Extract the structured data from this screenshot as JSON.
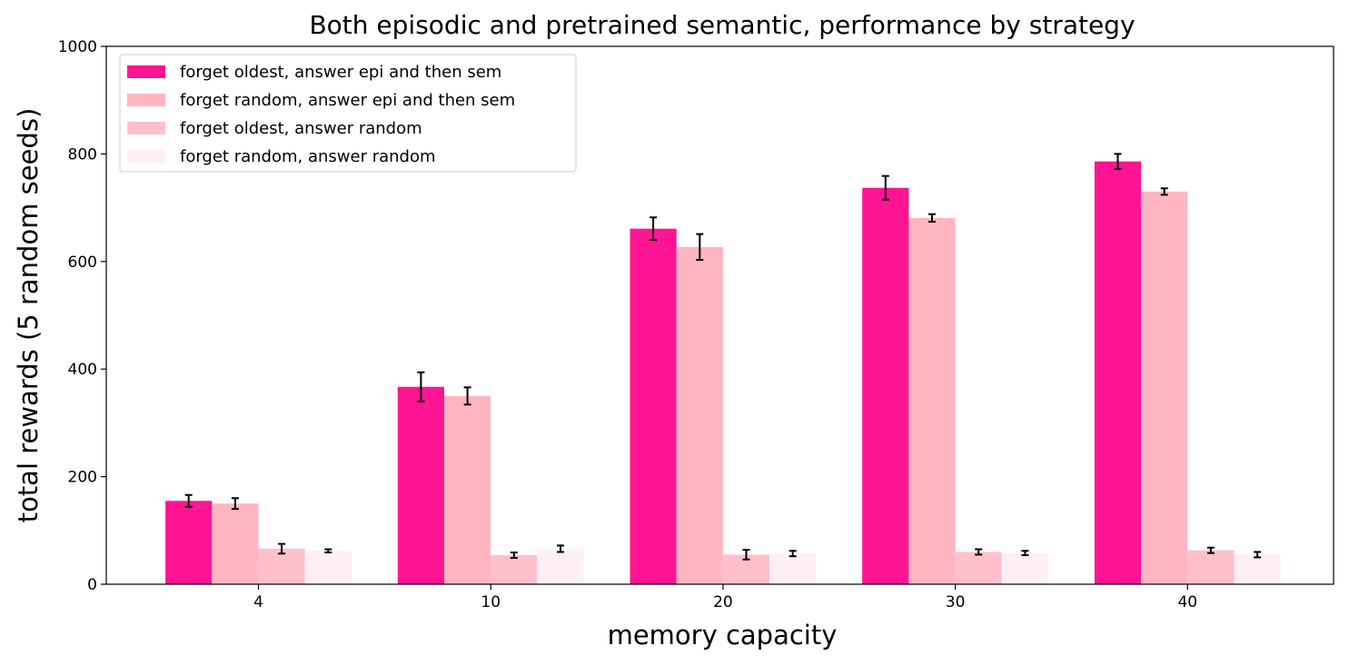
{
  "chart_data": {
    "type": "bar",
    "title": "Both episodic and pretrained semantic, performance by strategy",
    "xlabel": "memory capacity",
    "ylabel": "total rewards (5 random seeds)",
    "categories": [
      "4",
      "10",
      "20",
      "30",
      "40"
    ],
    "ylim": [
      0,
      1000
    ],
    "yticks": [
      0,
      200,
      400,
      600,
      800,
      1000
    ],
    "grid": false,
    "legend_position": "top-left",
    "series": [
      {
        "name": "forget oldest, answer epi and then sem",
        "color": "#ff1493",
        "values": [
          155,
          367,
          661,
          737,
          786
        ],
        "errors": [
          11,
          27,
          21,
          22,
          14
        ]
      },
      {
        "name": "forget random, answer epi and then sem",
        "color": "#ffb6c1",
        "values": [
          150,
          350,
          627,
          681,
          730
        ],
        "errors": [
          10,
          16,
          24,
          7,
          6
        ]
      },
      {
        "name": "forget oldest, answer random",
        "color": "#ffc0cb",
        "values": [
          66,
          54,
          55,
          60,
          63
        ],
        "errors": [
          9,
          5,
          9,
          5,
          5
        ]
      },
      {
        "name": "forget random, answer random",
        "color": "#fff0f5",
        "values": [
          62,
          66,
          57,
          58,
          55
        ],
        "errors": [
          3,
          6,
          5,
          4,
          5
        ]
      }
    ]
  }
}
